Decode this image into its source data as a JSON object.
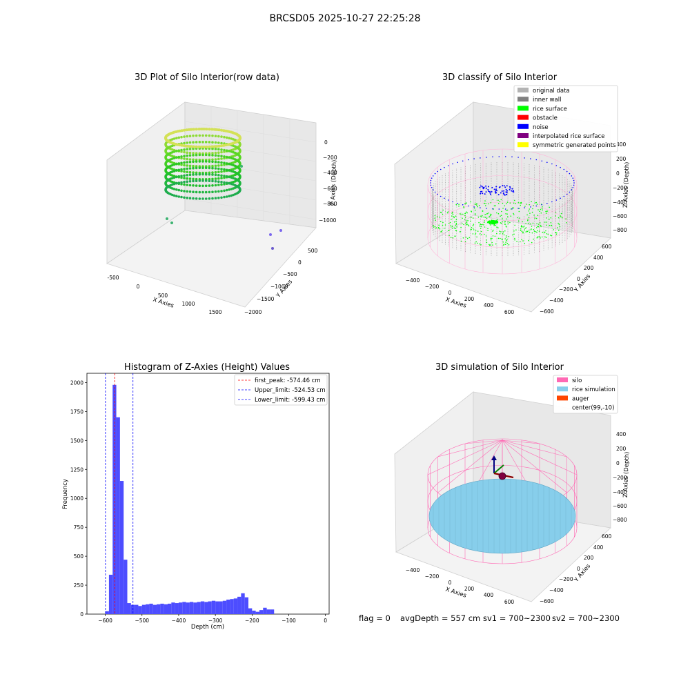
{
  "figure": {
    "suptitle": "BRCSD05 2025-10-27 22:25:28",
    "status": {
      "flag": "flag = 0",
      "avg_depth": "avgDepth = 557 cm",
      "sv1": "sv1 = 700~2300",
      "sv2": "sv2 = 700~2300"
    }
  },
  "colors": {
    "hist_bar": "#4d4dff",
    "first_peak_line": "#ff0000",
    "limit_line": "#0000ff",
    "original_data": "#b3b3b3",
    "inner_wall": "#808080",
    "rice_surface": "#00ff00",
    "obstacle": "#ff0000",
    "noise": "#0000ff",
    "interpolated_rice_surface": "#800080",
    "symmetric_generated_points": "#ffff00",
    "silo": "#ff69b4",
    "rice_simulation": "#87ceeb",
    "auger": "#ff4500"
  },
  "panels": {
    "raw": {
      "title": "3D Plot of Silo Interior(row data)",
      "xlabel": "X Axies",
      "ylabel": "Y Axies",
      "zlabel": "Z Axies (Depth)",
      "xticks": [
        "-500",
        "0",
        "500",
        "1000",
        "1500"
      ],
      "yticks": [
        "500",
        "0",
        "−500",
        "−1000",
        "−1500",
        "−2000"
      ],
      "zticks": [
        "0",
        "−200",
        "−400",
        "−600",
        "−800",
        "−1000"
      ]
    },
    "classify": {
      "title": "3D classify of Silo Interior",
      "xlabel": "X Axies",
      "ylabel": "Y Axies",
      "zlabel": "Z Axies (Depth)",
      "xticks": [
        "−400",
        "−200",
        "0",
        "200",
        "400",
        "600"
      ],
      "yticks": [
        "600",
        "400",
        "200",
        "0",
        "−200",
        "−400",
        "−600"
      ],
      "zticks": [
        "400",
        "200",
        "0",
        "−200",
        "−400",
        "−600",
        "−800"
      ],
      "legend": [
        {
          "label": "original data",
          "color": "#b3b3b3"
        },
        {
          "label": "inner wall",
          "color": "#808080"
        },
        {
          "label": "rice surface",
          "color": "#00ff00"
        },
        {
          "label": "obstacle",
          "color": "#ff0000"
        },
        {
          "label": "noise",
          "color": "#0000ff"
        },
        {
          "label": "interpolated rice surface",
          "color": "#800080"
        },
        {
          "label": "symmetric generated points",
          "color": "#ffff00"
        }
      ]
    },
    "simulation": {
      "title": "3D simulation of Silo Interior",
      "xlabel": "X Axies",
      "ylabel": "Y Axies",
      "zlabel": "Z Axies (Depth)",
      "xticks": [
        "−400",
        "−200",
        "0",
        "200",
        "400",
        "600"
      ],
      "yticks": [
        "600",
        "400",
        "200",
        "0",
        "−200",
        "−400",
        "−600"
      ],
      "zticks": [
        "400",
        "200",
        "0",
        "−200",
        "−400",
        "−600",
        "−800"
      ],
      "legend": [
        {
          "label": "silo",
          "color": "#ff69b4"
        },
        {
          "label": "rice simulation",
          "color": "#87ceeb"
        },
        {
          "label": "auger",
          "color": "#ff4500"
        },
        {
          "label": "center(99,-10)",
          "color": ""
        }
      ]
    }
  },
  "chart_data": {
    "type": "bar",
    "title": "Histogram of Z-Axies (Height) Values",
    "xlabel": "Depth (cm)",
    "ylabel": "Frequency",
    "xlim": [
      -650,
      10
    ],
    "ylim": [
      0,
      2080
    ],
    "xticks": [
      -600,
      -500,
      -400,
      -300,
      -200,
      -100,
      0
    ],
    "yticks": [
      0,
      250,
      500,
      750,
      1000,
      1250,
      1500,
      1750,
      2000
    ],
    "bin_width": 10,
    "bin_start": -600,
    "values": [
      25,
      340,
      1980,
      1700,
      1150,
      470,
      95,
      80,
      80,
      70,
      80,
      85,
      90,
      80,
      85,
      90,
      85,
      90,
      100,
      95,
      100,
      105,
      100,
      105,
      100,
      105,
      110,
      105,
      110,
      115,
      110,
      110,
      115,
      125,
      130,
      135,
      150,
      180,
      145,
      50,
      30,
      20,
      35,
      55,
      40,
      40
    ],
    "vlines": [
      {
        "label": "first_peak: -574.46 cm",
        "x": -574.46,
        "color": "#ff0000"
      },
      {
        "label": "Upper_limit: -524.53 cm",
        "x": -524.53,
        "color": "#0000ff"
      },
      {
        "label": "Lower_limit: -599.43 cm",
        "x": -599.43,
        "color": "#0000ff"
      }
    ],
    "legend_position": "top-right",
    "grid": false
  }
}
